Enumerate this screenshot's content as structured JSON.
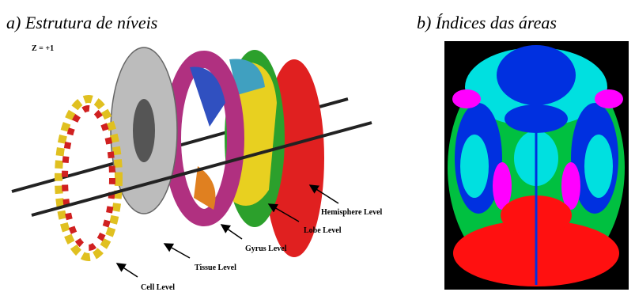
{
  "panels": [
    {
      "caption": "a) Estrutura de níveis",
      "z_label": "Z = +1",
      "labels": [
        "Hemisphere Level",
        "Lobe Level",
        "Gyrus Level",
        "Tissue Level",
        "Cell Level"
      ]
    },
    {
      "caption": "b) Índices das áreas"
    }
  ]
}
